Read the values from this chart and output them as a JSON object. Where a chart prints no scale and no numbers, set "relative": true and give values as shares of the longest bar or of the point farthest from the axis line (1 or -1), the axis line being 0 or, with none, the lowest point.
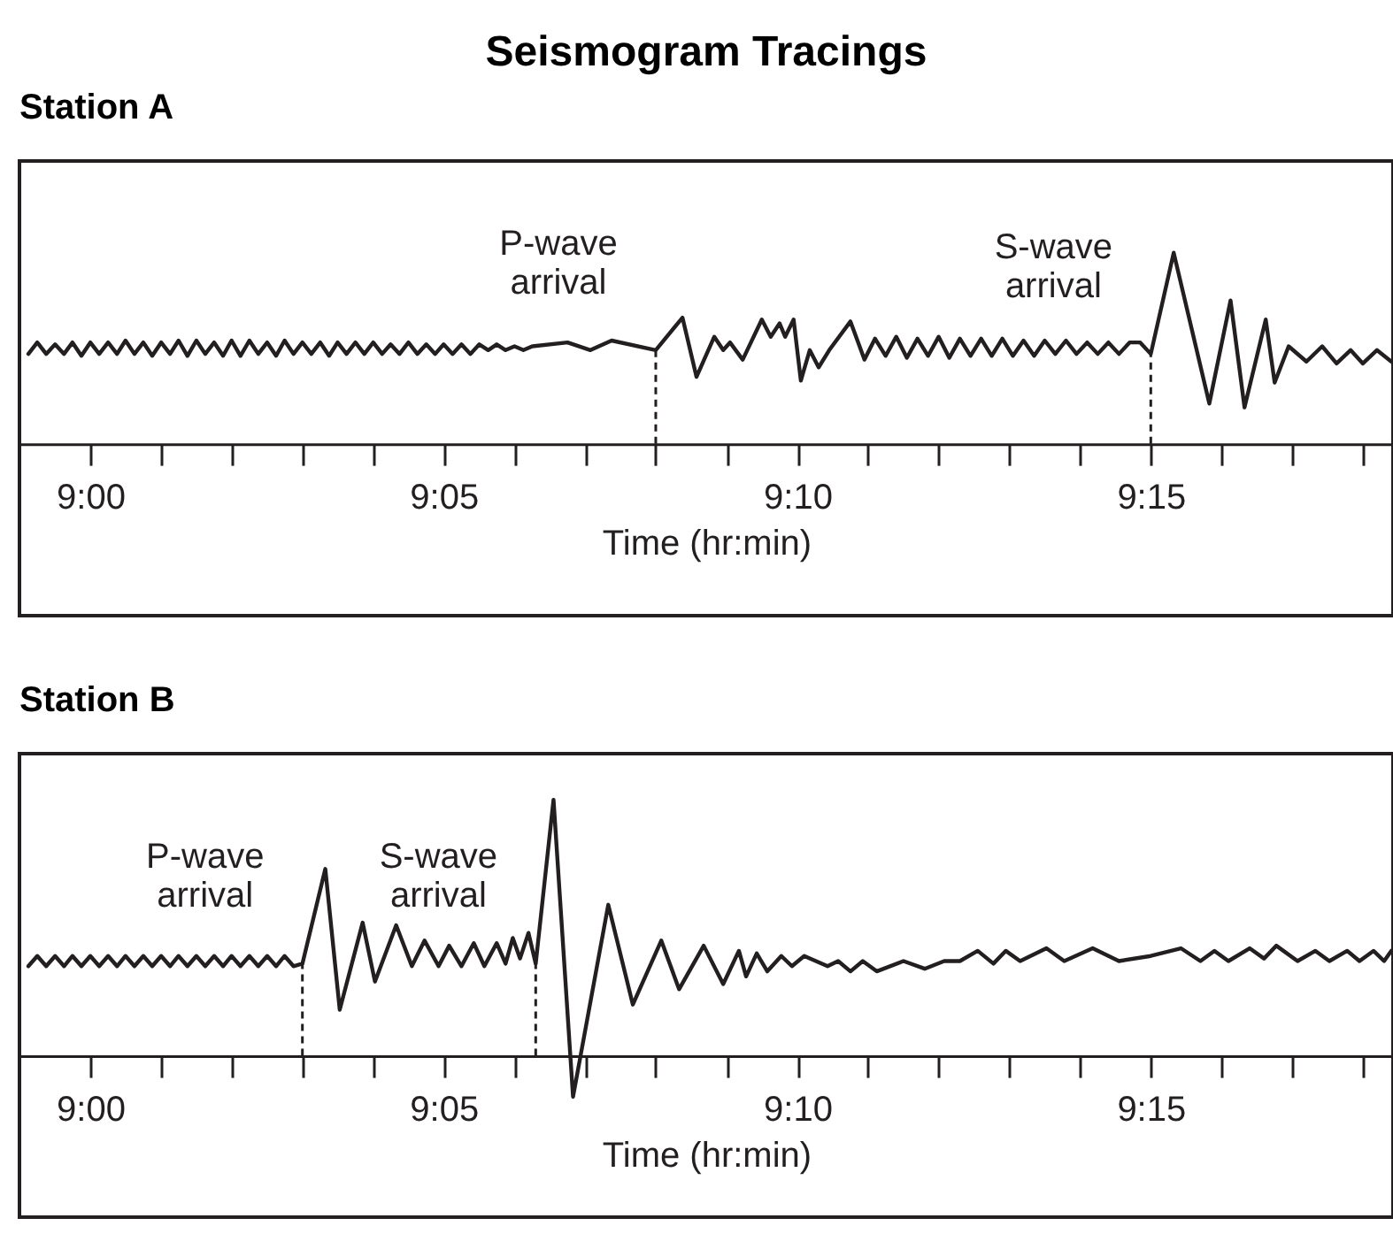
{
  "chart_data": [
    {
      "type": "line",
      "title": "Seismogram Tracings",
      "subtitle": "Station A",
      "xlabel": "Time (hr:min)",
      "relative": true,
      "legend": false,
      "grid": false,
      "xlim": [
        8.9833,
        9.3071
      ],
      "xticks": [
        {
          "value": 9,
          "label": "9:00"
        },
        {
          "value": 9.0167,
          "label": null
        },
        {
          "value": 9.0333,
          "label": null
        },
        {
          "value": 9.05,
          "label": null
        },
        {
          "value": 9.0667,
          "label": null
        },
        {
          "value": 9.0833,
          "label": "9:05"
        },
        {
          "value": 9.1,
          "label": null
        },
        {
          "value": 9.1167,
          "label": null
        },
        {
          "value": 9.1333,
          "label": null
        },
        {
          "value": 9.15,
          "label": null
        },
        {
          "value": 9.1667,
          "label": "9:10"
        },
        {
          "value": 9.1833,
          "label": null
        },
        {
          "value": 9.2,
          "label": null
        },
        {
          "value": 9.2167,
          "label": null
        },
        {
          "value": 9.2333,
          "label": null
        },
        {
          "value": 9.25,
          "label": "9:15"
        },
        {
          "value": 9.2667,
          "label": null
        },
        {
          "value": 9.2833,
          "label": null
        },
        {
          "value": 9.3,
          "label": null
        }
      ],
      "x": [
        8.9854,
        8.9875,
        8.9896,
        8.9917,
        8.9938,
        8.9958,
        8.9979,
        9.0,
        9.0021,
        9.0042,
        9.0063,
        9.0083,
        9.0104,
        9.0125,
        9.0146,
        9.0167,
        9.0188,
        9.0208,
        9.0229,
        9.025,
        9.0271,
        9.0292,
        9.0313,
        9.0333,
        9.0354,
        9.0375,
        9.0396,
        9.0417,
        9.0438,
        9.0458,
        9.0479,
        9.05,
        9.0521,
        9.0542,
        9.0563,
        9.0583,
        9.0604,
        9.0625,
        9.0646,
        9.0667,
        9.0688,
        9.0708,
        9.0729,
        9.075,
        9.0771,
        9.0792,
        9.0813,
        9.0833,
        9.0854,
        9.0875,
        9.0896,
        9.0917,
        9.0938,
        9.0958,
        9.0979,
        9.1,
        9.1021,
        9.1042,
        9.1125,
        9.1179,
        9.1229,
        9.1333,
        9.1396,
        9.1429,
        9.1471,
        9.1492,
        9.1508,
        9.1538,
        9.1583,
        9.1604,
        9.1625,
        9.1638,
        9.1658,
        9.1675,
        9.1696,
        9.1717,
        9.1742,
        9.1792,
        9.1825,
        9.185,
        9.1875,
        9.19,
        9.1925,
        9.195,
        9.1975,
        9.2,
        9.2025,
        9.205,
        9.2075,
        9.21,
        9.2125,
        9.215,
        9.2175,
        9.22,
        9.2225,
        9.225,
        9.2275,
        9.23,
        9.2325,
        9.235,
        9.2375,
        9.24,
        9.2425,
        9.245,
        9.2475,
        9.25,
        9.2554,
        9.2638,
        9.2688,
        9.2721,
        9.2771,
        9.2792,
        9.2825,
        9.2867,
        9.2904,
        9.2938,
        9.2971,
        9.3,
        9.3033,
        9.3067
      ],
      "series": [
        {
          "color": "#231f20",
          "values": [
            0.47,
            0.53,
            0.47,
            0.52,
            0.47,
            0.53,
            0.46,
            0.53,
            0.47,
            0.53,
            0.47,
            0.54,
            0.47,
            0.53,
            0.46,
            0.53,
            0.47,
            0.54,
            0.46,
            0.54,
            0.47,
            0.53,
            0.46,
            0.54,
            0.46,
            0.54,
            0.47,
            0.53,
            0.46,
            0.54,
            0.47,
            0.53,
            0.47,
            0.53,
            0.46,
            0.53,
            0.47,
            0.53,
            0.47,
            0.53,
            0.47,
            0.52,
            0.47,
            0.53,
            0.47,
            0.52,
            0.47,
            0.52,
            0.47,
            0.52,
            0.47,
            0.52,
            0.49,
            0.52,
            0.49,
            0.51,
            0.49,
            0.51,
            0.53,
            0.49,
            0.54,
            0.49,
            0.66,
            0.35,
            0.56,
            0.49,
            0.53,
            0.44,
            0.65,
            0.56,
            0.63,
            0.56,
            0.65,
            0.33,
            0.49,
            0.4,
            0.49,
            0.64,
            0.44,
            0.55,
            0.46,
            0.56,
            0.45,
            0.55,
            0.46,
            0.56,
            0.45,
            0.55,
            0.46,
            0.55,
            0.46,
            0.55,
            0.46,
            0.54,
            0.46,
            0.54,
            0.47,
            0.54,
            0.47,
            0.53,
            0.47,
            0.53,
            0.47,
            0.53,
            0.53,
            0.47,
            1.0,
            0.21,
            0.75,
            0.19,
            0.65,
            0.32,
            0.51,
            0.43,
            0.51,
            0.42,
            0.49,
            0.42,
            0.49,
            0.43
          ]
        }
      ],
      "ref_lines": [
        {
          "axis": "x",
          "value": 9.1333,
          "line_style": "dashed"
        },
        {
          "axis": "x",
          "value": 9.25,
          "line_style": "dashed"
        }
      ],
      "annotations": [
        {
          "text": "P-wave\narrival",
          "x": 9.1333,
          "y": 0.49
        },
        {
          "text": "S-wave\narrival",
          "x": 9.25,
          "y": 0.47
        }
      ]
    },
    {
      "type": "line",
      "title": "Station B",
      "xlabel": "Time (hr:min)",
      "relative": true,
      "legend": false,
      "grid": false,
      "xlim": [
        8.9833,
        9.3071
      ],
      "xticks": [
        {
          "value": 9,
          "label": "9:00"
        },
        {
          "value": 9.0167,
          "label": null
        },
        {
          "value": 9.0333,
          "label": null
        },
        {
          "value": 9.05,
          "label": null
        },
        {
          "value": 9.0667,
          "label": null
        },
        {
          "value": 9.0833,
          "label": "9:05"
        },
        {
          "value": 9.1,
          "label": null
        },
        {
          "value": 9.1167,
          "label": null
        },
        {
          "value": 9.1333,
          "label": null
        },
        {
          "value": 9.15,
          "label": null
        },
        {
          "value": 9.1667,
          "label": "9:10"
        },
        {
          "value": 9.1833,
          "label": null
        },
        {
          "value": 9.2,
          "label": null
        },
        {
          "value": 9.2167,
          "label": null
        },
        {
          "value": 9.2333,
          "label": null
        },
        {
          "value": 9.25,
          "label": "9:15"
        },
        {
          "value": 9.2667,
          "label": null
        },
        {
          "value": 9.2833,
          "label": null
        },
        {
          "value": 9.3,
          "label": null
        }
      ],
      "x": [
        8.9854,
        8.9875,
        8.9896,
        8.9917,
        8.9938,
        8.9958,
        8.9979,
        9.0,
        9.0021,
        9.0042,
        9.0063,
        9.0083,
        9.0104,
        9.0125,
        9.0146,
        9.0167,
        9.0188,
        9.0208,
        9.0229,
        9.025,
        9.0271,
        9.0292,
        9.0313,
        9.0333,
        9.0354,
        9.0375,
        9.0396,
        9.0417,
        9.0438,
        9.0458,
        9.0479,
        9.05,
        9.0554,
        9.0588,
        9.0642,
        9.0671,
        9.0721,
        9.0758,
        9.0788,
        9.0821,
        9.0846,
        9.0875,
        9.0904,
        9.0929,
        9.0958,
        9.0979,
        9.0996,
        9.1013,
        9.1033,
        9.105,
        9.1092,
        9.1138,
        9.1221,
        9.1279,
        9.1346,
        9.1388,
        9.1446,
        9.1492,
        9.1529,
        9.1546,
        9.1571,
        9.1596,
        9.1629,
        9.1654,
        9.1683,
        9.1738,
        9.1763,
        9.1792,
        9.1821,
        9.1854,
        9.1917,
        9.1967,
        9.2013,
        9.205,
        9.2092,
        9.2129,
        9.2158,
        9.2192,
        9.2254,
        9.2296,
        9.2363,
        9.2425,
        9.25,
        9.2571,
        9.2617,
        9.265,
        9.2683,
        9.2733,
        9.2767,
        9.2796,
        9.2846,
        9.2888,
        9.2921,
        9.2963,
        9.2992,
        9.3025,
        9.305,
        9.3067
      ],
      "series": [
        {
          "color": "#231f20",
          "values": [
            0.35,
            0.39,
            0.35,
            0.39,
            0.35,
            0.39,
            0.35,
            0.39,
            0.35,
            0.39,
            0.35,
            0.39,
            0.35,
            0.39,
            0.35,
            0.39,
            0.35,
            0.39,
            0.35,
            0.39,
            0.35,
            0.39,
            0.35,
            0.39,
            0.35,
            0.39,
            0.35,
            0.39,
            0.35,
            0.39,
            0.35,
            0.36,
            0.73,
            0.18,
            0.52,
            0.29,
            0.51,
            0.35,
            0.45,
            0.35,
            0.43,
            0.35,
            0.44,
            0.35,
            0.44,
            0.36,
            0.46,
            0.38,
            0.48,
            0.36,
            1.0,
            -0.16,
            0.59,
            0.2,
            0.45,
            0.26,
            0.43,
            0.28,
            0.41,
            0.31,
            0.4,
            0.33,
            0.39,
            0.35,
            0.39,
            0.35,
            0.37,
            0.33,
            0.37,
            0.33,
            0.37,
            0.34,
            0.37,
            0.37,
            0.41,
            0.36,
            0.41,
            0.37,
            0.42,
            0.37,
            0.42,
            0.37,
            0.39,
            0.42,
            0.37,
            0.41,
            0.37,
            0.42,
            0.38,
            0.43,
            0.37,
            0.41,
            0.37,
            0.41,
            0.37,
            0.41,
            0.37,
            0.41
          ]
        }
      ],
      "ref_lines": [
        {
          "axis": "x",
          "value": 9.05,
          "line_style": "dashed"
        },
        {
          "axis": "x",
          "value": 9.105,
          "line_style": "dashed"
        }
      ],
      "annotations": [
        {
          "text": "P-wave\narrival",
          "x": 9.05,
          "y": 0.36
        },
        {
          "text": "S-wave\narrival",
          "x": 9.105,
          "y": 0.36
        }
      ]
    }
  ]
}
